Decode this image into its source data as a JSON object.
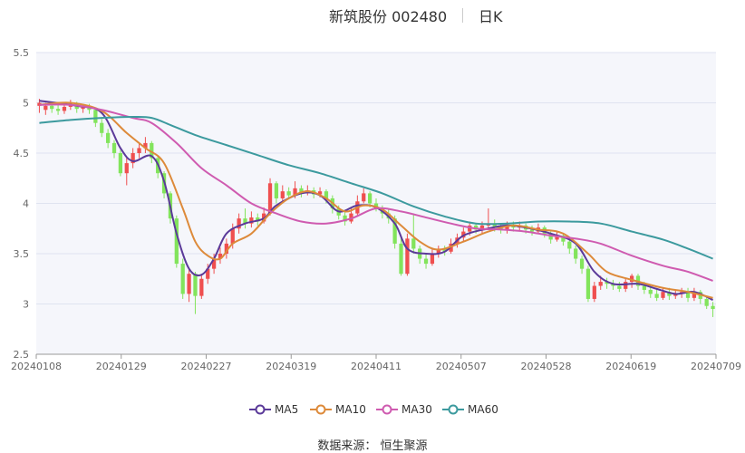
{
  "title": {
    "stock": "新筑股份 002480",
    "period": "日K"
  },
  "source": "数据来源：  恒生聚源",
  "chart_data": {
    "type": "candlestick",
    "ylim": [
      2.5,
      5.5
    ],
    "y_ticks": [
      "2.5",
      "3",
      "3.5",
      "4",
      "4.5",
      "5",
      "5.5"
    ],
    "x_ticks": [
      "20240108",
      "20240129",
      "20240227",
      "20240319",
      "20240411",
      "20240507",
      "20240528",
      "20240619",
      "20240709"
    ],
    "colors": {
      "up": "#ef4f4f",
      "down": "#82e45c",
      "MA5": "#5b3a99",
      "MA10": "#dd8a3a",
      "MA30": "#cf5bb0",
      "MA60": "#3c9a9e"
    },
    "legend": [
      "MA5",
      "MA10",
      "MA30",
      "MA60"
    ],
    "candles": [
      [
        4.97,
        5.0,
        5.04,
        4.9
      ],
      [
        4.93,
        4.97,
        5.0,
        4.88
      ],
      [
        4.97,
        4.94,
        5.0,
        4.9
      ],
      [
        4.94,
        4.92,
        4.98,
        4.88
      ],
      [
        4.92,
        4.96,
        4.99,
        4.89
      ],
      [
        4.96,
        4.99,
        5.03,
        4.93
      ],
      [
        4.99,
        4.94,
        5.01,
        4.9
      ],
      [
        4.94,
        4.96,
        4.99,
        4.9
      ],
      [
        4.96,
        4.93,
        4.99,
        4.89
      ],
      [
        4.93,
        4.8,
        4.95,
        4.76
      ],
      [
        4.8,
        4.7,
        4.84,
        4.66
      ],
      [
        4.7,
        4.6,
        4.74,
        4.55
      ],
      [
        4.6,
        4.5,
        4.63,
        4.45
      ],
      [
        4.5,
        4.3,
        4.53,
        4.27
      ],
      [
        4.3,
        4.4,
        4.46,
        4.18
      ],
      [
        4.4,
        4.5,
        4.55,
        4.35
      ],
      [
        4.5,
        4.55,
        4.6,
        4.45
      ],
      [
        4.55,
        4.6,
        4.66,
        4.5
      ],
      [
        4.6,
        4.45,
        4.62,
        4.4
      ],
      [
        4.45,
        4.3,
        4.48,
        4.25
      ],
      [
        4.3,
        4.1,
        4.32,
        4.05
      ],
      [
        4.1,
        3.85,
        4.12,
        3.8
      ],
      [
        3.85,
        3.4,
        3.88,
        3.36
      ],
      [
        3.4,
        3.1,
        3.45,
        3.05
      ],
      [
        3.1,
        3.3,
        3.35,
        3.02
      ],
      [
        3.3,
        3.08,
        3.32,
        2.9
      ],
      [
        3.08,
        3.25,
        3.3,
        3.05
      ],
      [
        3.25,
        3.35,
        3.4,
        3.2
      ],
      [
        3.35,
        3.45,
        3.5,
        3.3
      ],
      [
        3.45,
        3.5,
        3.56,
        3.4
      ],
      [
        3.5,
        3.6,
        3.65,
        3.45
      ],
      [
        3.6,
        3.75,
        3.8,
        3.55
      ],
      [
        3.75,
        3.85,
        3.9,
        3.7
      ],
      [
        3.85,
        3.8,
        3.95,
        3.75
      ],
      [
        3.8,
        3.86,
        3.92,
        3.76
      ],
      [
        3.86,
        3.82,
        3.9,
        3.78
      ],
      [
        3.82,
        3.9,
        3.96,
        3.8
      ],
      [
        3.9,
        4.2,
        4.25,
        3.88
      ],
      [
        4.2,
        4.05,
        4.22,
        4.0
      ],
      [
        4.05,
        4.12,
        4.18,
        4.02
      ],
      [
        4.12,
        4.08,
        4.16,
        4.04
      ],
      [
        4.08,
        4.15,
        4.22,
        4.05
      ],
      [
        4.15,
        4.1,
        4.18,
        4.06
      ],
      [
        4.1,
        4.13,
        4.18,
        4.08
      ],
      [
        4.13,
        4.09,
        4.16,
        4.05
      ],
      [
        4.09,
        4.12,
        4.16,
        4.06
      ],
      [
        4.12,
        4.05,
        4.14,
        4.0
      ],
      [
        4.05,
        3.95,
        4.08,
        3.9
      ],
      [
        3.95,
        3.88,
        3.98,
        3.84
      ],
      [
        3.88,
        3.82,
        3.92,
        3.78
      ],
      [
        3.82,
        3.9,
        3.95,
        3.8
      ],
      [
        3.9,
        4.02,
        4.08,
        3.88
      ],
      [
        4.02,
        4.1,
        4.15,
        4.0
      ],
      [
        4.1,
        4.0,
        4.12,
        3.96
      ],
      [
        4.0,
        3.95,
        4.05,
        3.92
      ],
      [
        3.95,
        3.9,
        3.98,
        3.85
      ],
      [
        3.9,
        3.85,
        3.95,
        3.8
      ],
      [
        3.85,
        3.6,
        3.88,
        3.55
      ],
      [
        3.6,
        3.3,
        3.65,
        3.28
      ],
      [
        3.3,
        3.65,
        3.7,
        3.28
      ],
      [
        3.65,
        3.55,
        3.9,
        3.5
      ],
      [
        3.55,
        3.45,
        3.58,
        3.4
      ],
      [
        3.45,
        3.4,
        3.5,
        3.35
      ],
      [
        3.4,
        3.5,
        3.55,
        3.38
      ],
      [
        3.5,
        3.55,
        3.58,
        3.46
      ],
      [
        3.55,
        3.52,
        3.58,
        3.48
      ],
      [
        3.52,
        3.6,
        3.65,
        3.5
      ],
      [
        3.6,
        3.66,
        3.7,
        3.56
      ],
      [
        3.66,
        3.72,
        3.76,
        3.62
      ],
      [
        3.72,
        3.78,
        3.82,
        3.68
      ],
      [
        3.78,
        3.74,
        3.8,
        3.7
      ],
      [
        3.74,
        3.78,
        3.82,
        3.7
      ],
      [
        3.78,
        3.8,
        3.95,
        3.74
      ],
      [
        3.8,
        3.76,
        3.84,
        3.72
      ],
      [
        3.76,
        3.74,
        3.8,
        3.7
      ],
      [
        3.74,
        3.79,
        3.82,
        3.7
      ],
      [
        3.79,
        3.76,
        3.82,
        3.72
      ],
      [
        3.76,
        3.78,
        3.82,
        3.73
      ],
      [
        3.78,
        3.74,
        3.8,
        3.7
      ],
      [
        3.74,
        3.72,
        3.78,
        3.68
      ],
      [
        3.72,
        3.76,
        3.8,
        3.7
      ],
      [
        3.76,
        3.7,
        3.78,
        3.66
      ],
      [
        3.7,
        3.64,
        3.72,
        3.6
      ],
      [
        3.64,
        3.68,
        3.72,
        3.62
      ],
      [
        3.68,
        3.62,
        3.7,
        3.58
      ],
      [
        3.62,
        3.55,
        3.65,
        3.5
      ],
      [
        3.55,
        3.45,
        3.58,
        3.4
      ],
      [
        3.45,
        3.35,
        3.48,
        3.3
      ],
      [
        3.35,
        3.05,
        3.38,
        3.02
      ],
      [
        3.05,
        3.18,
        3.22,
        3.02
      ],
      [
        3.18,
        3.22,
        3.28,
        3.14
      ],
      [
        3.22,
        3.2,
        3.26,
        3.15
      ],
      [
        3.2,
        3.18,
        3.24,
        3.14
      ],
      [
        3.18,
        3.15,
        3.22,
        3.12
      ],
      [
        3.15,
        3.22,
        3.26,
        3.12
      ],
      [
        3.22,
        3.28,
        3.3,
        3.16
      ],
      [
        3.28,
        3.18,
        3.3,
        3.14
      ],
      [
        3.18,
        3.14,
        3.22,
        3.1
      ],
      [
        3.14,
        3.1,
        3.18,
        3.06
      ],
      [
        3.1,
        3.06,
        3.15,
        3.03
      ],
      [
        3.06,
        3.12,
        3.16,
        3.04
      ],
      [
        3.12,
        3.08,
        3.16,
        3.04
      ],
      [
        3.08,
        3.1,
        3.14,
        3.05
      ],
      [
        3.1,
        3.12,
        3.16,
        3.06
      ],
      [
        3.12,
        3.06,
        3.16,
        3.02
      ],
      [
        3.06,
        3.12,
        3.16,
        3.03
      ],
      [
        3.12,
        3.05,
        3.14,
        3.0
      ],
      [
        3.05,
        2.98,
        3.08,
        2.95
      ],
      [
        2.98,
        2.95,
        3.02,
        2.87
      ]
    ],
    "ma": {
      "MA5": [
        [
          0,
          5.02
        ],
        [
          6,
          4.97
        ],
        [
          10,
          4.9
        ],
        [
          13,
          4.55
        ],
        [
          15,
          4.42
        ],
        [
          18,
          4.47
        ],
        [
          20,
          4.22
        ],
        [
          22,
          3.7
        ],
        [
          24,
          3.35
        ],
        [
          26,
          3.29
        ],
        [
          28,
          3.45
        ],
        [
          30,
          3.7
        ],
        [
          33,
          3.8
        ],
        [
          36,
          3.85
        ],
        [
          38,
          3.98
        ],
        [
          42,
          4.1
        ],
        [
          45,
          4.08
        ],
        [
          48,
          3.92
        ],
        [
          51,
          3.98
        ],
        [
          54,
          3.96
        ],
        [
          57,
          3.8
        ],
        [
          59,
          3.55
        ],
        [
          62,
          3.5
        ],
        [
          65,
          3.52
        ],
        [
          68,
          3.68
        ],
        [
          72,
          3.75
        ],
        [
          75,
          3.78
        ],
        [
          78,
          3.76
        ],
        [
          82,
          3.7
        ],
        [
          86,
          3.6
        ],
        [
          89,
          3.32
        ],
        [
          92,
          3.2
        ],
        [
          96,
          3.2
        ],
        [
          99,
          3.15
        ],
        [
          102,
          3.1
        ],
        [
          105,
          3.12
        ],
        [
          108,
          3.04
        ]
      ],
      "MA10": [
        [
          0,
          4.98
        ],
        [
          5,
          5.0
        ],
        [
          10,
          4.92
        ],
        [
          14,
          4.7
        ],
        [
          17,
          4.55
        ],
        [
          20,
          4.4
        ],
        [
          23,
          3.95
        ],
        [
          25,
          3.62
        ],
        [
          27,
          3.48
        ],
        [
          29,
          3.45
        ],
        [
          31,
          3.6
        ],
        [
          34,
          3.7
        ],
        [
          37,
          3.9
        ],
        [
          40,
          4.05
        ],
        [
          43,
          4.12
        ],
        [
          46,
          4.05
        ],
        [
          49,
          3.92
        ],
        [
          52,
          3.98
        ],
        [
          55,
          3.94
        ],
        [
          58,
          3.78
        ],
        [
          61,
          3.62
        ],
        [
          64,
          3.54
        ],
        [
          68,
          3.62
        ],
        [
          72,
          3.72
        ],
        [
          76,
          3.78
        ],
        [
          80,
          3.74
        ],
        [
          84,
          3.7
        ],
        [
          88,
          3.5
        ],
        [
          91,
          3.32
        ],
        [
          95,
          3.24
        ],
        [
          100,
          3.16
        ],
        [
          104,
          3.12
        ],
        [
          108,
          3.06
        ]
      ],
      "MA30": [
        [
          0,
          4.98
        ],
        [
          5,
          4.98
        ],
        [
          10,
          4.93
        ],
        [
          15,
          4.85
        ],
        [
          18,
          4.8
        ],
        [
          22,
          4.6
        ],
        [
          26,
          4.35
        ],
        [
          30,
          4.18
        ],
        [
          34,
          4.0
        ],
        [
          38,
          3.9
        ],
        [
          42,
          3.82
        ],
        [
          46,
          3.8
        ],
        [
          50,
          3.85
        ],
        [
          54,
          3.95
        ],
        [
          58,
          3.92
        ],
        [
          62,
          3.86
        ],
        [
          66,
          3.8
        ],
        [
          70,
          3.75
        ],
        [
          74,
          3.74
        ],
        [
          78,
          3.72
        ],
        [
          82,
          3.68
        ],
        [
          86,
          3.65
        ],
        [
          90,
          3.6
        ],
        [
          95,
          3.48
        ],
        [
          100,
          3.38
        ],
        [
          104,
          3.32
        ],
        [
          108,
          3.23
        ]
      ],
      "MA60": [
        [
          0,
          4.8
        ],
        [
          5,
          4.83
        ],
        [
          10,
          4.85
        ],
        [
          15,
          4.86
        ],
        [
          18,
          4.85
        ],
        [
          21,
          4.78
        ],
        [
          25,
          4.68
        ],
        [
          30,
          4.58
        ],
        [
          35,
          4.48
        ],
        [
          40,
          4.38
        ],
        [
          45,
          4.3
        ],
        [
          50,
          4.2
        ],
        [
          55,
          4.1
        ],
        [
          60,
          3.97
        ],
        [
          65,
          3.87
        ],
        [
          70,
          3.8
        ],
        [
          75,
          3.8
        ],
        [
          80,
          3.82
        ],
        [
          85,
          3.82
        ],
        [
          90,
          3.8
        ],
        [
          95,
          3.72
        ],
        [
          100,
          3.64
        ],
        [
          104,
          3.55
        ],
        [
          108,
          3.45
        ]
      ]
    }
  }
}
